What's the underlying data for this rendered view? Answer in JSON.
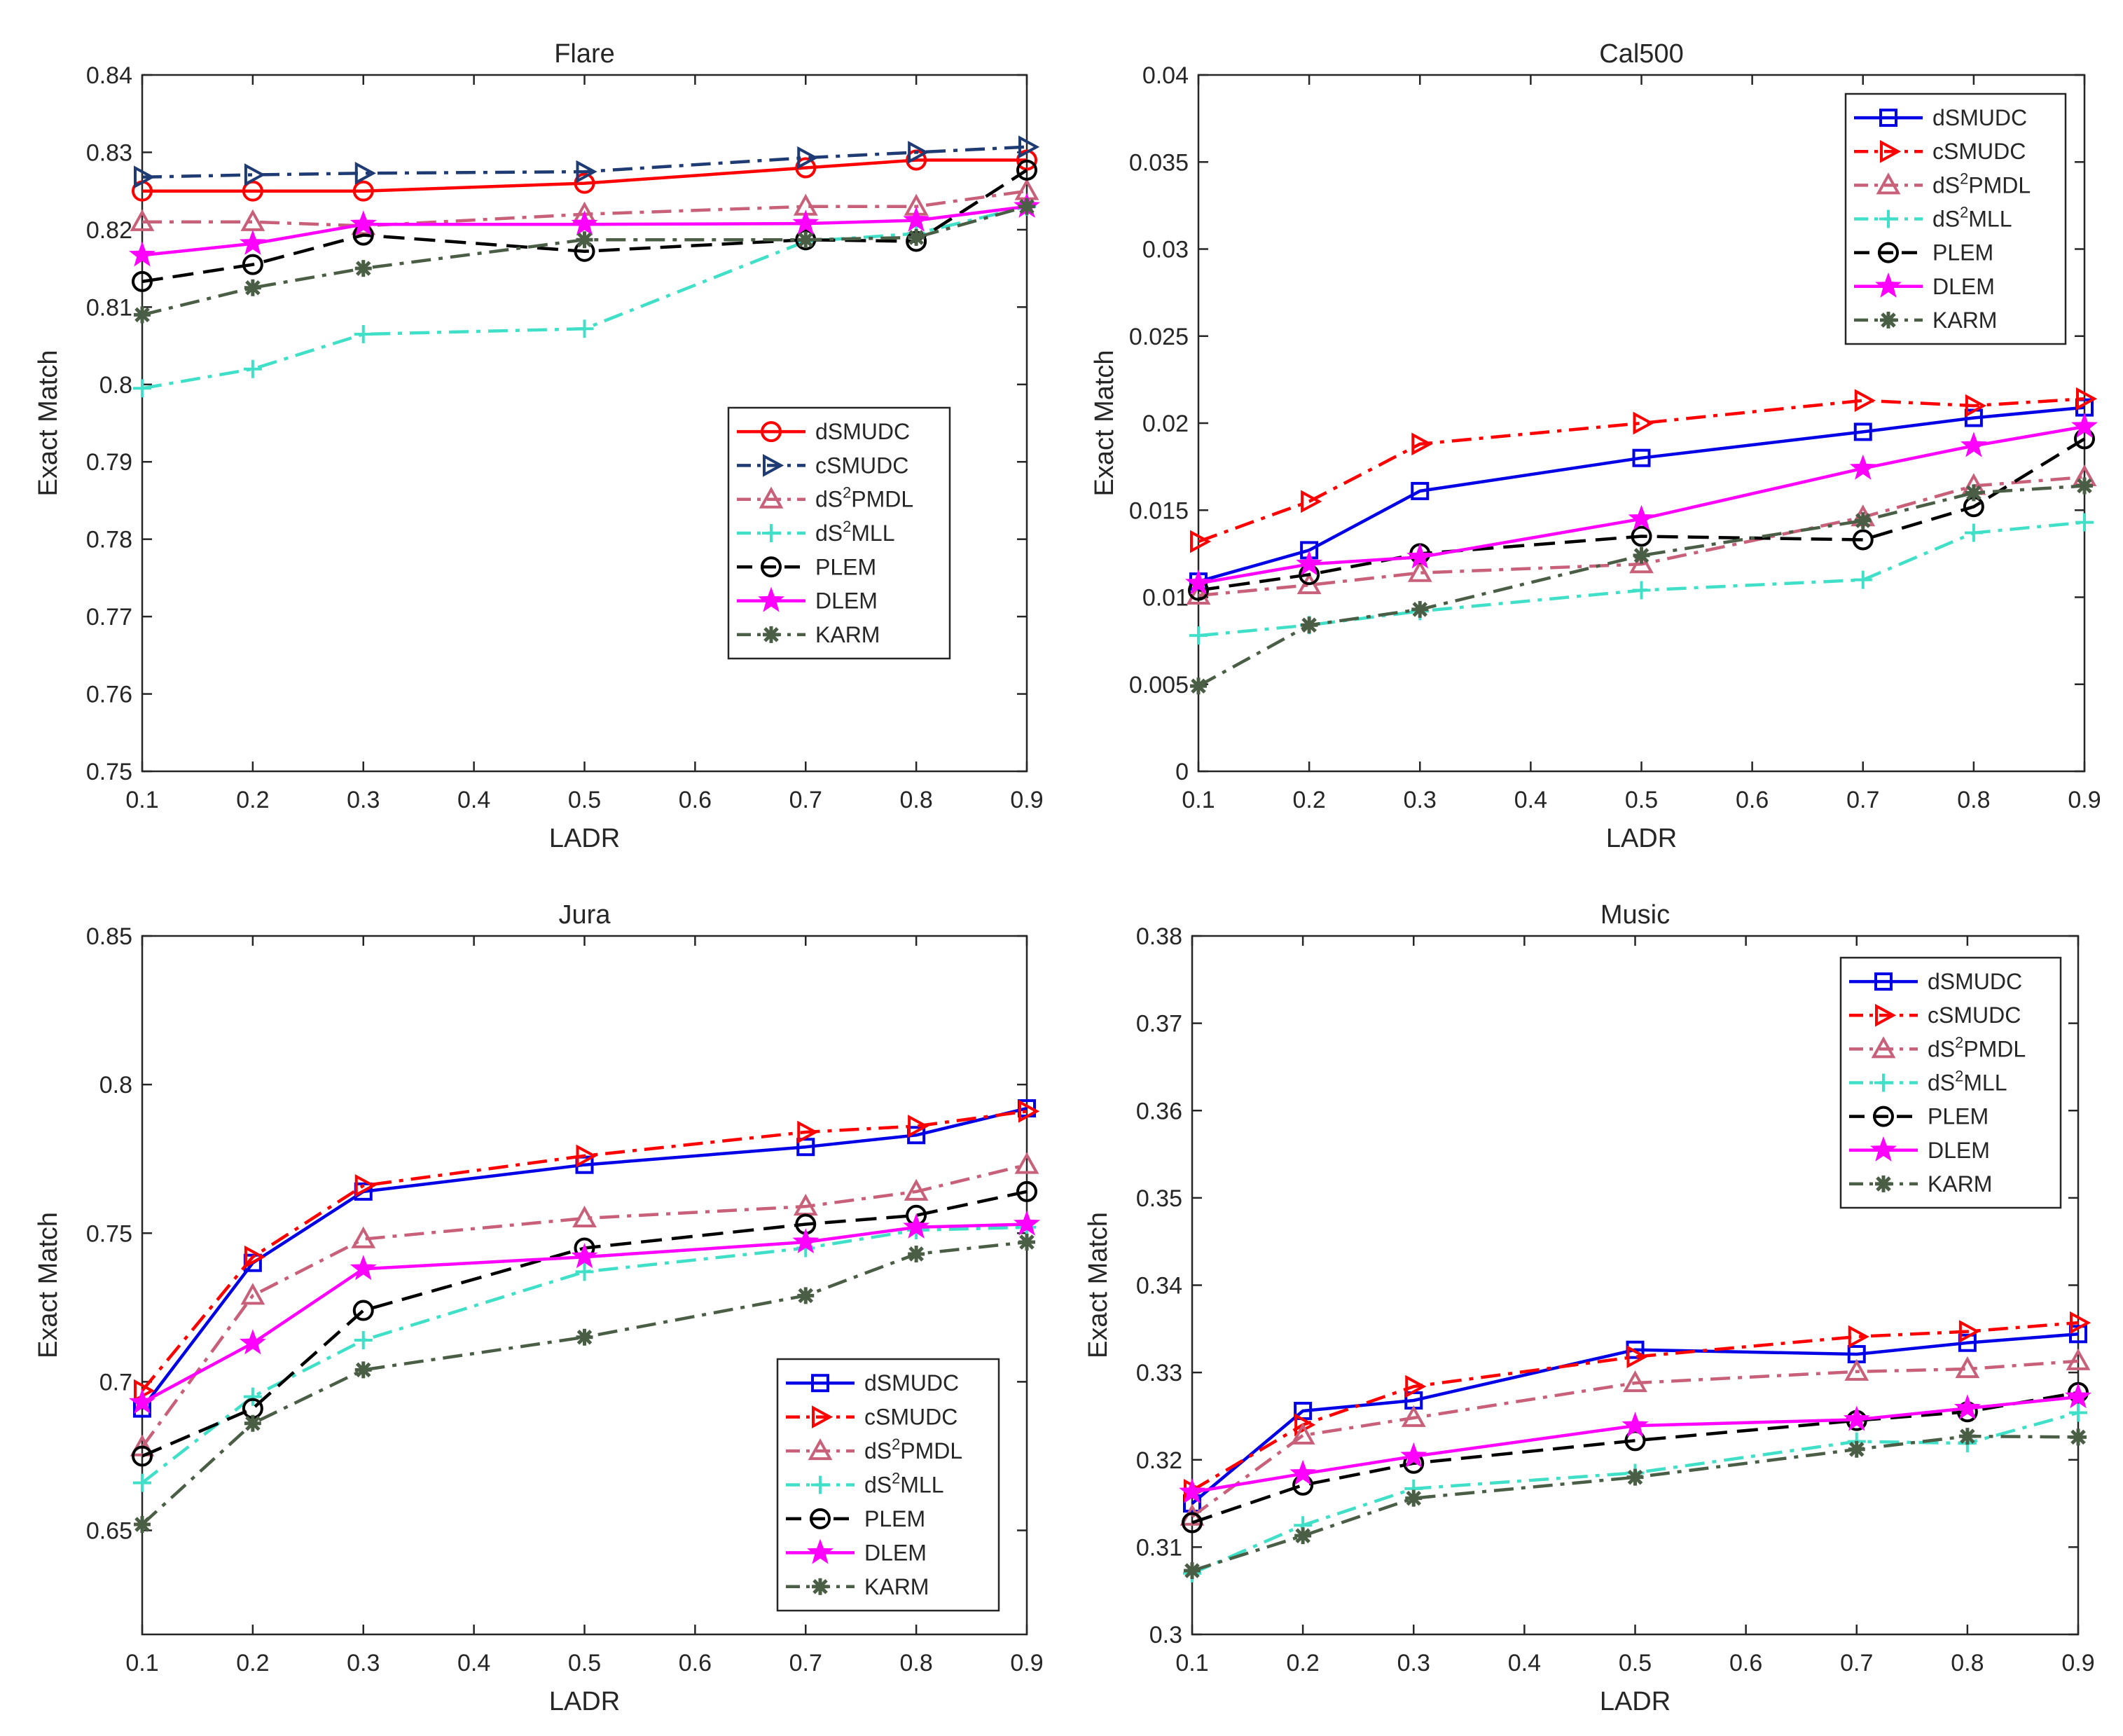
{
  "colors": {
    "dSMUDC": "#ff0000",
    "cSMUDC": "#1f3b73",
    "dS2PMDL": "#c8607a",
    "dS2MLL": "#40e0c8",
    "PLEM": "#000000",
    "DLEM": "#ff00ff",
    "KARM": "#4a5e46",
    "dSMUDC_blue": "#0000e6",
    "cSMUDC_red": "#ff0000",
    "axis": "#262626"
  },
  "chart_data": [
    {
      "type": "line",
      "title": "Flare",
      "xlabel": "LADR",
      "ylabel": "Exact Match",
      "x": [
        0.1,
        0.2,
        0.3,
        0.5,
        0.7,
        0.8,
        0.9
      ],
      "xticks": [
        "0.1",
        "0.2",
        "0.3",
        "0.4",
        "0.5",
        "0.6",
        "0.7",
        "0.8",
        "0.9"
      ],
      "yticks": [
        "0.75",
        "0.76",
        "0.77",
        "0.78",
        "0.79",
        "0.8",
        "0.81",
        "0.82",
        "0.83",
        "0.84"
      ],
      "xlim": [
        0.1,
        0.9
      ],
      "ylim": [
        0.75,
        0.84
      ],
      "legend_position": "center-right",
      "series": [
        {
          "name": "dSMUDC",
          "sup": "",
          "color": "#ff0000",
          "dash": "solid",
          "marker": "circle",
          "values": [
            0.825,
            0.825,
            0.825,
            0.826,
            0.828,
            0.829,
            0.829
          ]
        },
        {
          "name": "cSMUDC",
          "sup": "",
          "color": "#1f3b73",
          "dash": "dashdot",
          "marker": "triangle-right",
          "values": [
            0.8268,
            0.8271,
            0.8273,
            0.8275,
            0.8293,
            0.83,
            0.8307
          ]
        },
        {
          "name": "dS",
          "sup": "2",
          "suffix": "PMDL",
          "color": "#c8607a",
          "dash": "dashdot",
          "marker": "triangle-up",
          "values": [
            0.821,
            0.821,
            0.8205,
            0.822,
            0.823,
            0.823,
            0.825
          ]
        },
        {
          "name": "dS",
          "sup": "2",
          "suffix": "MLL",
          "color": "#40e0c8",
          "dash": "dashdot",
          "marker": "plus",
          "values": [
            0.7995,
            0.802,
            0.8065,
            0.8072,
            0.8185,
            0.8195,
            0.823
          ]
        },
        {
          "name": "PLEM",
          "sup": "",
          "color": "#000000",
          "dash": "dashed",
          "marker": "circle",
          "values": [
            0.8133,
            0.8155,
            0.8193,
            0.8172,
            0.8187,
            0.8185,
            0.8277
          ]
        },
        {
          "name": "DLEM",
          "sup": "",
          "color": "#ff00ff",
          "dash": "solid",
          "marker": "star",
          "values": [
            0.8167,
            0.8182,
            0.8207,
            0.8207,
            0.8208,
            0.8212,
            0.823
          ]
        },
        {
          "name": "KARM",
          "sup": "",
          "color": "#4a5e46",
          "dash": "dashdot",
          "marker": "asterisk",
          "values": [
            0.809,
            0.8125,
            0.815,
            0.8187,
            0.8187,
            0.819,
            0.823
          ]
        }
      ]
    },
    {
      "type": "line",
      "title": "Cal500",
      "xlabel": "LADR",
      "ylabel": "Exact Match",
      "x": [
        0.1,
        0.2,
        0.3,
        0.5,
        0.7,
        0.8,
        0.9
      ],
      "xticks": [
        "0.1",
        "0.2",
        "0.3",
        "0.4",
        "0.5",
        "0.6",
        "0.7",
        "0.8",
        "0.9"
      ],
      "yticks": [
        "0",
        "0.005",
        "0.01",
        "0.015",
        "0.02",
        "0.025",
        "0.03",
        "0.035",
        "0.04"
      ],
      "xlim": [
        0.1,
        0.9
      ],
      "ylim": [
        0,
        0.04
      ],
      "legend_position": "top-right",
      "series": [
        {
          "name": "dSMUDC",
          "sup": "",
          "color": "#0000e6",
          "dash": "solid",
          "marker": "square",
          "values": [
            0.0109,
            0.0127,
            0.0161,
            0.018,
            0.0195,
            0.0203,
            0.0209
          ]
        },
        {
          "name": "cSMUDC",
          "sup": "",
          "color": "#ff0000",
          "dash": "dashdot",
          "marker": "triangle-right",
          "values": [
            0.0132,
            0.0155,
            0.0188,
            0.02,
            0.0213,
            0.021,
            0.0214
          ]
        },
        {
          "name": "dS",
          "sup": "2",
          "suffix": "PMDL",
          "color": "#c8607a",
          "dash": "dashdot",
          "marker": "triangle-up",
          "values": [
            0.0101,
            0.0107,
            0.0114,
            0.0119,
            0.0146,
            0.0164,
            0.0169
          ]
        },
        {
          "name": "dS",
          "sup": "2",
          "suffix": "MLL",
          "color": "#40e0c8",
          "dash": "dashdot",
          "marker": "plus",
          "values": [
            0.0078,
            0.0084,
            0.0092,
            0.0104,
            0.011,
            0.0137,
            0.0143
          ]
        },
        {
          "name": "PLEM",
          "sup": "",
          "color": "#000000",
          "dash": "dashed",
          "marker": "circle",
          "values": [
            0.0104,
            0.0113,
            0.0125,
            0.0135,
            0.0133,
            0.0152,
            0.0191
          ]
        },
        {
          "name": "DLEM",
          "sup": "",
          "color": "#ff00ff",
          "dash": "solid",
          "marker": "star",
          "values": [
            0.0108,
            0.0119,
            0.0123,
            0.0145,
            0.0174,
            0.0187,
            0.0198
          ]
        },
        {
          "name": "KARM",
          "sup": "",
          "color": "#4a5e46",
          "dash": "dashdot",
          "marker": "asterisk",
          "values": [
            0.0049,
            0.0084,
            0.0093,
            0.0124,
            0.0144,
            0.016,
            0.0164
          ]
        }
      ]
    },
    {
      "type": "line",
      "title": "Jura",
      "xlabel": "LADR",
      "ylabel": "Exact Match",
      "x": [
        0.1,
        0.2,
        0.3,
        0.5,
        0.7,
        0.8,
        0.9
      ],
      "xticks": [
        "0.1",
        "0.2",
        "0.3",
        "0.4",
        "0.5",
        "0.6",
        "0.7",
        "0.8",
        "0.9"
      ],
      "yticks": [
        "0.65",
        "0.7",
        "0.75",
        "0.8",
        "0.85"
      ],
      "xlim": [
        0.1,
        0.9
      ],
      "ylim": [
        0.615,
        0.85
      ],
      "legend_position": "bottom-right",
      "series": [
        {
          "name": "dSMUDC",
          "sup": "",
          "color": "#0000e6",
          "dash": "solid",
          "marker": "square",
          "values": [
            0.691,
            0.74,
            0.764,
            0.773,
            0.779,
            0.783,
            0.792
          ]
        },
        {
          "name": "cSMUDC",
          "sup": "",
          "color": "#ff0000",
          "dash": "dashdot",
          "marker": "triangle-right",
          "values": [
            0.697,
            0.742,
            0.766,
            0.776,
            0.784,
            0.786,
            0.791
          ]
        },
        {
          "name": "dS",
          "sup": "2",
          "suffix": "PMDL",
          "color": "#c8607a",
          "dash": "dashdot",
          "marker": "triangle-up",
          "values": [
            0.678,
            0.729,
            0.748,
            0.755,
            0.759,
            0.764,
            0.773
          ]
        },
        {
          "name": "dS",
          "sup": "2",
          "suffix": "MLL",
          "color": "#40e0c8",
          "dash": "dashdot",
          "marker": "plus",
          "values": [
            0.666,
            0.695,
            0.714,
            0.737,
            0.745,
            0.751,
            0.752
          ]
        },
        {
          "name": "PLEM",
          "sup": "",
          "color": "#000000",
          "dash": "dashed",
          "marker": "circle",
          "values": [
            0.675,
            0.691,
            0.724,
            0.745,
            0.753,
            0.756,
            0.764
          ]
        },
        {
          "name": "DLEM",
          "sup": "",
          "color": "#ff00ff",
          "dash": "solid",
          "marker": "star",
          "values": [
            0.693,
            0.713,
            0.738,
            0.742,
            0.747,
            0.752,
            0.753
          ]
        },
        {
          "name": "KARM",
          "sup": "",
          "color": "#4a5e46",
          "dash": "dashdot",
          "marker": "asterisk",
          "values": [
            0.652,
            0.686,
            0.704,
            0.715,
            0.729,
            0.743,
            0.747
          ]
        }
      ]
    },
    {
      "type": "line",
      "title": "Music",
      "xlabel": "LADR",
      "ylabel": "Exact Match",
      "x": [
        0.1,
        0.2,
        0.3,
        0.5,
        0.7,
        0.8,
        0.9
      ],
      "xticks": [
        "0.1",
        "0.2",
        "0.3",
        "0.4",
        "0.5",
        "0.6",
        "0.7",
        "0.8",
        "0.9"
      ],
      "yticks": [
        "0.3",
        "0.31",
        "0.32",
        "0.33",
        "0.34",
        "0.35",
        "0.36",
        "0.37",
        "0.38"
      ],
      "xlim": [
        0.1,
        0.9
      ],
      "ylim": [
        0.3,
        0.38
      ],
      "legend_position": "top-right",
      "series": [
        {
          "name": "dSMUDC",
          "sup": "",
          "color": "#0000e6",
          "dash": "solid",
          "marker": "square",
          "values": [
            0.315,
            0.3256,
            0.3268,
            0.3326,
            0.3321,
            0.3334,
            0.3344
          ]
        },
        {
          "name": "cSMUDC",
          "sup": "",
          "color": "#ff0000",
          "dash": "dashdot",
          "marker": "triangle-right",
          "values": [
            0.3165,
            0.324,
            0.3284,
            0.3318,
            0.3341,
            0.3347,
            0.3357
          ]
        },
        {
          "name": "dS",
          "sup": "2",
          "suffix": "PMDL",
          "color": "#c8607a",
          "dash": "dashdot",
          "marker": "triangle-up",
          "values": [
            0.3135,
            0.3228,
            0.3248,
            0.3288,
            0.3301,
            0.3304,
            0.3313
          ]
        },
        {
          "name": "dS",
          "sup": "2",
          "suffix": "MLL",
          "color": "#40e0c8",
          "dash": "dashdot",
          "marker": "plus",
          "values": [
            0.307,
            0.3125,
            0.3167,
            0.3185,
            0.3221,
            0.3219,
            0.3254
          ]
        },
        {
          "name": "PLEM",
          "sup": "",
          "color": "#000000",
          "dash": "dashed",
          "marker": "circle",
          "values": [
            0.3128,
            0.3171,
            0.3196,
            0.3222,
            0.3245,
            0.3255,
            0.3277
          ]
        },
        {
          "name": "DLEM",
          "sup": "",
          "color": "#ff00ff",
          "dash": "solid",
          "marker": "star",
          "values": [
            0.3163,
            0.3184,
            0.3204,
            0.3239,
            0.3246,
            0.3259,
            0.3272
          ]
        },
        {
          "name": "KARM",
          "sup": "",
          "color": "#4a5e46",
          "dash": "dashdot",
          "marker": "asterisk",
          "values": [
            0.3073,
            0.3113,
            0.3156,
            0.318,
            0.3212,
            0.3227,
            0.3226
          ]
        }
      ]
    }
  ]
}
